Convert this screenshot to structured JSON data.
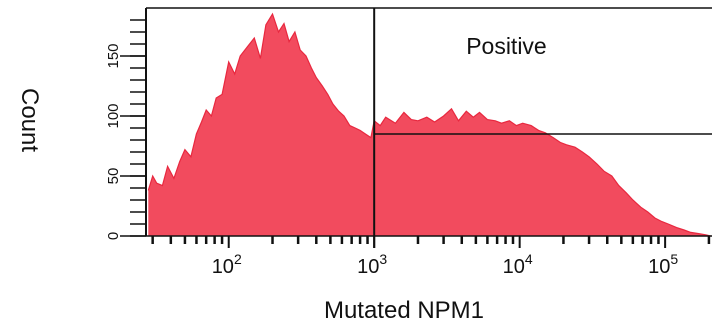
{
  "chart_data": {
    "type": "area",
    "title": "",
    "xlabel": "Mutated NPM1",
    "ylabel": "Count",
    "x_scale": "log",
    "xlim": [
      27,
      210000
    ],
    "ylim": [
      0,
      190
    ],
    "x_ticks": [
      {
        "value": 100,
        "base": "10",
        "exp": "2"
      },
      {
        "value": 1000,
        "base": "10",
        "exp": "3"
      },
      {
        "value": 10000,
        "base": "10",
        "exp": "4"
      },
      {
        "value": 100000,
        "base": "10",
        "exp": "5"
      }
    ],
    "y_ticks": [
      0,
      50,
      100,
      150
    ],
    "fill_color": "#f24b5e",
    "edge_color": "#e8283f",
    "gate": {
      "label": "Positive",
      "x_start": 1000,
      "x_end": 210000,
      "y_level": 85
    },
    "series": [
      {
        "x": [
          28,
          30,
          32,
          35,
          38,
          42,
          46,
          50,
          55,
          60,
          65,
          70,
          76,
          82,
          90,
          100,
          110,
          120,
          135,
          150,
          165,
          180,
          200,
          220,
          240,
          260,
          285,
          310,
          340,
          370,
          400,
          440,
          480,
          520,
          570,
          620,
          680,
          740,
          800,
          870,
          950,
          1000,
          1100,
          1200,
          1400,
          1600,
          1800,
          2000,
          2300,
          2600,
          3000,
          3400,
          3800,
          4300,
          4800,
          5300,
          6000,
          6800,
          7500,
          8500,
          9500,
          10500,
          12000,
          13500,
          15000,
          17000,
          19000,
          21000,
          24000,
          27000,
          30000,
          34000,
          38000,
          43000,
          48000,
          54000,
          60000,
          68000,
          76000,
          85000,
          95000,
          105000,
          120000,
          135000,
          150000,
          170000,
          190000,
          205000
        ],
        "y": [
          38,
          50,
          44,
          42,
          58,
          48,
          62,
          72,
          66,
          85,
          95,
          105,
          100,
          115,
          118,
          145,
          135,
          150,
          158,
          165,
          148,
          176,
          185,
          170,
          177,
          162,
          170,
          155,
          150,
          140,
          132,
          125,
          118,
          110,
          104,
          100,
          92,
          90,
          88,
          85,
          82,
          96,
          92,
          99,
          94,
          103,
          97,
          96,
          99,
          95,
          100,
          106,
          96,
          104,
          99,
          103,
          97,
          96,
          94,
          96,
          92,
          94,
          92,
          88,
          86,
          82,
          78,
          76,
          74,
          70,
          66,
          60,
          54,
          50,
          42,
          36,
          30,
          24,
          20,
          15,
          12,
          10,
          7,
          5,
          3,
          2,
          1,
          0
        ]
      }
    ]
  }
}
